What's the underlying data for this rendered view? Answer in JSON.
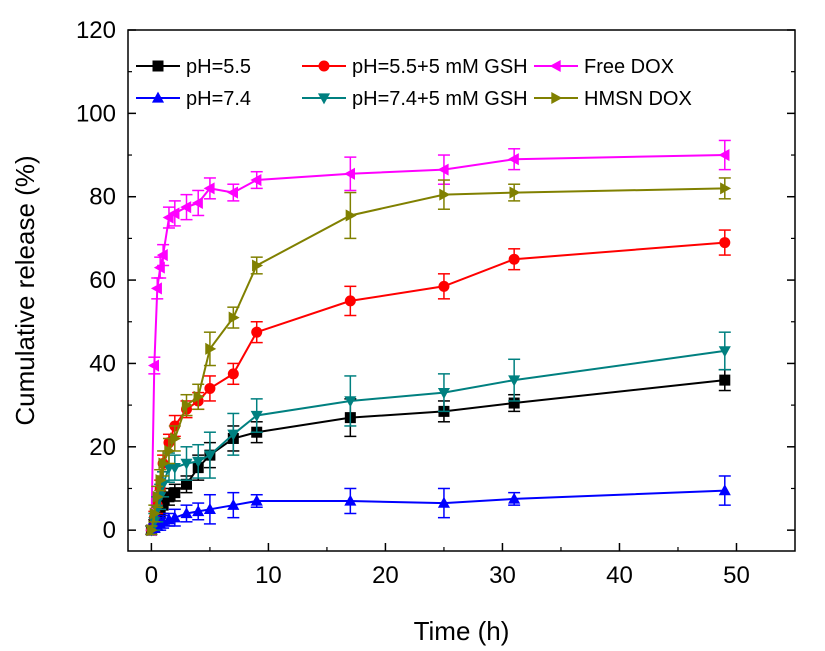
{
  "chart_data": {
    "type": "line",
    "title": "",
    "xlabel": "Time (h)",
    "ylabel": "Cumulative release (%)",
    "xlim": [
      -2,
      55
    ],
    "ylim": [
      -5,
      120
    ],
    "xticks": [
      "0",
      "10",
      "20",
      "30",
      "40",
      "50"
    ],
    "yticks": [
      "0",
      "20",
      "40",
      "60",
      "80",
      "100",
      "120"
    ],
    "grid": false,
    "legend_position": "top",
    "series": [
      {
        "name": "pH=5.5",
        "color": "#000000",
        "marker": "square",
        "x": [
          0,
          0.25,
          0.5,
          0.75,
          1,
          1.5,
          2,
          3,
          4,
          5,
          7,
          9,
          17,
          25,
          31,
          49
        ],
        "y": [
          0,
          1,
          2,
          4,
          6,
          8,
          9,
          11,
          15,
          18,
          22,
          23.5,
          27,
          28.5,
          30.5,
          36
        ],
        "err": [
          1,
          1.5,
          2,
          2,
          2,
          2,
          2,
          2,
          3,
          3,
          3,
          2.5,
          4.5,
          2.5,
          2,
          2.5
        ]
      },
      {
        "name": "pH=5.5+5 mM GSH",
        "color": "#ff0000",
        "marker": "circle",
        "x": [
          0,
          0.25,
          0.5,
          0.75,
          1,
          1.5,
          2,
          3,
          4,
          5,
          7,
          9,
          17,
          25,
          31,
          49
        ],
        "y": [
          0,
          3,
          6,
          10,
          16,
          21,
          25,
          29,
          31,
          34,
          37.5,
          47.5,
          55,
          58.5,
          65,
          69
        ],
        "err": [
          1,
          1.5,
          2,
          2,
          2,
          2,
          2.5,
          2,
          2,
          3,
          2.5,
          2.5,
          3.5,
          3,
          2.5,
          3
        ]
      },
      {
        "name": "Free DOX",
        "color": "#ff00ff",
        "marker": "triangle-left",
        "x": [
          0,
          0.25,
          0.5,
          0.75,
          1,
          1.5,
          2,
          3,
          4,
          5,
          7,
          9,
          17,
          25,
          31,
          49
        ],
        "y": [
          0,
          39.5,
          58,
          63,
          66,
          75,
          76,
          77.5,
          78.5,
          82,
          81,
          84,
          85.5,
          86.5,
          89,
          90
        ],
        "err": [
          1,
          2,
          2.5,
          2.5,
          2.5,
          2.5,
          3,
          3,
          3,
          2.5,
          2,
          2,
          4,
          3.5,
          2.5,
          3.5
        ]
      },
      {
        "name": "pH=7.4",
        "color": "#0000ff",
        "marker": "triangle-up",
        "x": [
          0,
          0.25,
          0.5,
          0.75,
          1,
          1.5,
          2,
          3,
          4,
          5,
          7,
          9,
          17,
          25,
          31,
          49
        ],
        "y": [
          0,
          0.5,
          1,
          1.5,
          2,
          2.5,
          3,
          4,
          4.5,
          5,
          6,
          7,
          7,
          6.5,
          7.5,
          9.5
        ],
        "err": [
          1,
          1,
          1,
          1.5,
          1.5,
          1.5,
          2,
          2,
          2,
          3.5,
          3,
          1.5,
          3,
          3.5,
          1.5,
          3.5
        ]
      },
      {
        "name": "pH=7.4+5 mM GSH",
        "color": "#008080",
        "marker": "triangle-down",
        "x": [
          0,
          0.25,
          0.5,
          0.75,
          1,
          1.5,
          2,
          3,
          4,
          5,
          7,
          9,
          17,
          25,
          31,
          49
        ],
        "y": [
          0,
          2,
          5,
          8,
          11,
          15,
          15,
          16,
          16.5,
          18,
          23,
          27.5,
          31,
          33,
          36,
          43
        ],
        "err": [
          1,
          2,
          3,
          3,
          3,
          3.5,
          3,
          4,
          4,
          5.5,
          5,
          4,
          6,
          4.5,
          5,
          4.5
        ]
      },
      {
        "name": "HMSN DOX",
        "color": "#808000",
        "marker": "triangle-right",
        "x": [
          0,
          0.25,
          0.5,
          0.75,
          1,
          1.5,
          2,
          3,
          4,
          5,
          7,
          9,
          17,
          25,
          31,
          49
        ],
        "y": [
          0,
          4,
          8,
          12,
          16,
          19,
          22,
          30,
          32,
          43.5,
          51,
          63.5,
          75.5,
          80.5,
          81,
          82
        ],
        "err": [
          1,
          2,
          2.5,
          2.5,
          3,
          3,
          3,
          2.5,
          3,
          4,
          2.5,
          2,
          5.5,
          3.5,
          2,
          2.5
        ]
      }
    ]
  }
}
